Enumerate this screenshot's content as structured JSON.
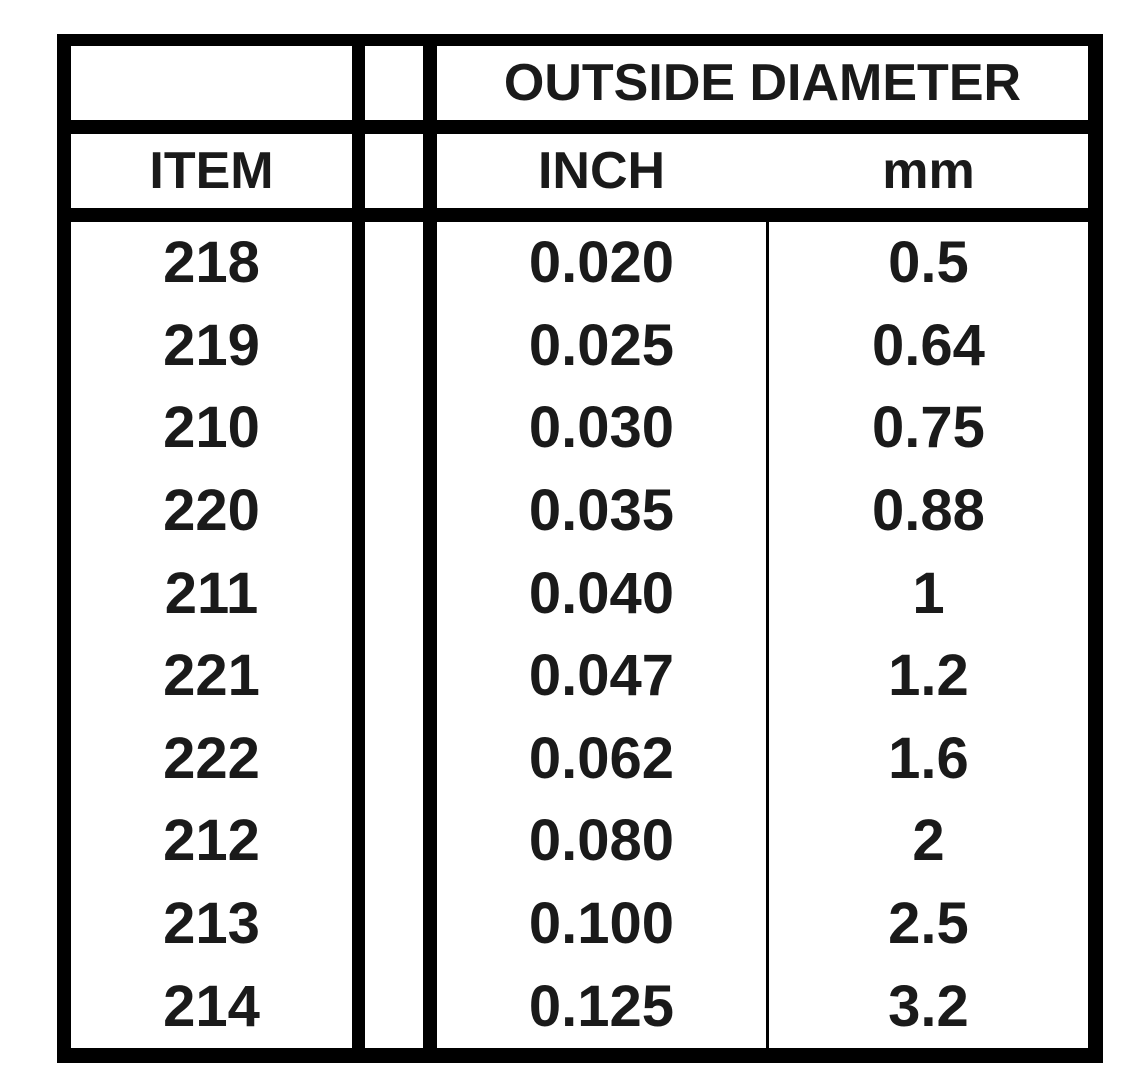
{
  "table": {
    "group_header": "OUTSIDE DIAMETER",
    "columns": [
      "ITEM",
      "",
      "INCH",
      "mm"
    ],
    "rows": [
      {
        "item": "218",
        "inch": "0.020",
        "mm": "0.5"
      },
      {
        "item": "219",
        "inch": "0.025",
        "mm": "0.64"
      },
      {
        "item": "210",
        "inch": "0.030",
        "mm": "0.75"
      },
      {
        "item": "220",
        "inch": "0.035",
        "mm": "0.88"
      },
      {
        "item": "211",
        "inch": "0.040",
        "mm": "1"
      },
      {
        "item": "221",
        "inch": "0.047",
        "mm": "1.2"
      },
      {
        "item": "222",
        "inch": "0.062",
        "mm": "1.6"
      },
      {
        "item": "212",
        "inch": "0.080",
        "mm": "2"
      },
      {
        "item": "213",
        "inch": "0.100",
        "mm": "2.5"
      },
      {
        "item": "214",
        "inch": "0.125",
        "mm": "3.2"
      }
    ]
  }
}
